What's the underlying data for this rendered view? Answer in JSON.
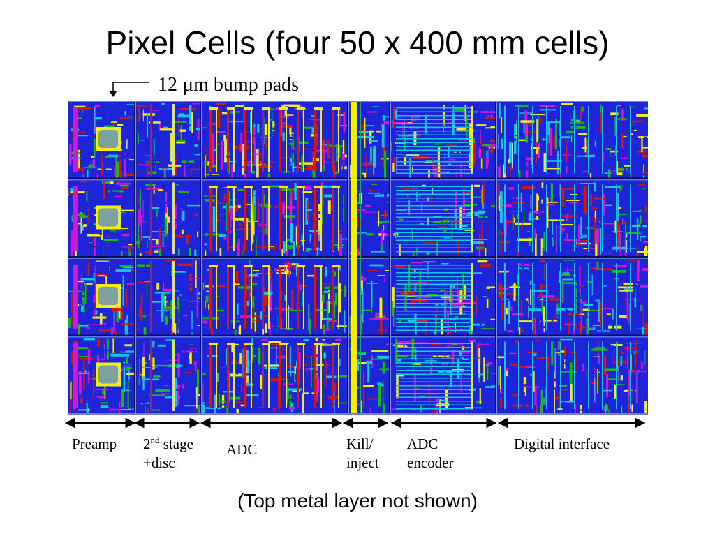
{
  "slide": {
    "title": "Pixel Cells (four 50 x 400 mm cells)",
    "bump_pads_label": "12 µm bump pads",
    "caption": "(Top metal layer not shown)"
  },
  "sections": [
    {
      "id": "preamp",
      "lines": [
        "Preamp"
      ]
    },
    {
      "id": "second-stage",
      "lines": [
        "2nd stage",
        "+disc"
      ]
    },
    {
      "id": "adc",
      "lines": [
        "ADC"
      ]
    },
    {
      "id": "kill-inject",
      "lines": [
        "Kill/",
        "inject"
      ]
    },
    {
      "id": "adc-encoder",
      "lines": [
        "ADC",
        "encoder"
      ]
    },
    {
      "id": "digital-interface",
      "lines": [
        "Digital interface"
      ]
    }
  ],
  "colors": {
    "metal_blue": "#1e24d8",
    "poly_red": "#d01818",
    "diff_yellow": "#f2ee10",
    "green": "#18b818",
    "magenta": "#d018d0",
    "cyan": "#10c8e8",
    "pad_gray": "#7fa0a0"
  }
}
